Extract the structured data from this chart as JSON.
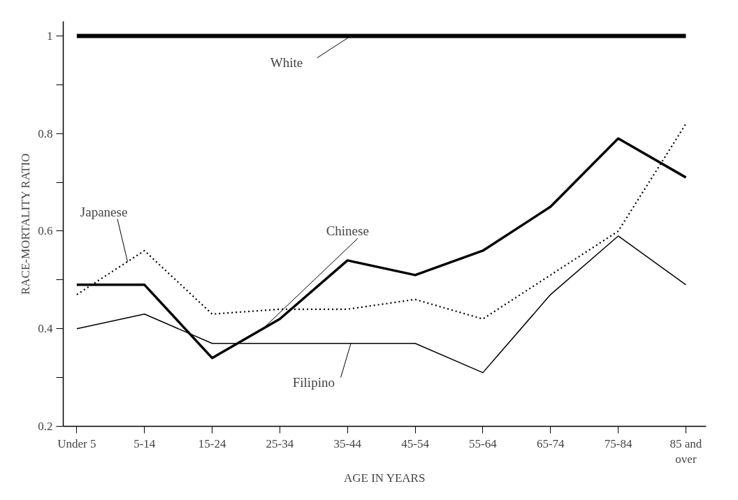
{
  "chart_data": {
    "type": "line",
    "xlabel": "AGE IN YEARS",
    "ylabel": "RACE-MORTALITY RATIO",
    "categories": [
      "Under 5",
      "5-14",
      "15-24",
      "25-34",
      "35-44",
      "45-54",
      "55-64",
      "65-74",
      "75-84",
      "85 and\nover"
    ],
    "series": [
      {
        "name": "White",
        "color": "#000000",
        "line_style": "solid",
        "values": [
          1,
          1,
          1,
          1,
          1,
          1,
          1,
          1,
          1,
          1
        ]
      },
      {
        "name": "Japanese",
        "color": "#000000",
        "line_style": "dotted",
        "values": [
          0.47,
          0.56,
          0.43,
          0.44,
          0.44,
          0.46,
          0.42,
          0.51,
          0.6,
          0.82
        ]
      },
      {
        "name": "Chinese",
        "color": "#000000",
        "line_style": "solid",
        "values": [
          0.49,
          0.49,
          0.34,
          0.42,
          0.54,
          0.51,
          0.56,
          0.65,
          0.79,
          0.71
        ]
      },
      {
        "name": "Filipino",
        "color": "#000000",
        "line_style": "solid",
        "values": [
          0.4,
          0.43,
          0.37,
          0.37,
          0.37,
          0.37,
          0.31,
          0.47,
          0.59,
          0.49
        ]
      }
    ],
    "ylim": [
      0.2,
      1.03
    ],
    "yticks": [
      0.2,
      {
        "value": 0.3,
        "label": null
      },
      0.4,
      {
        "value": 0.5,
        "label": null
      },
      0.6,
      {
        "value": 0.7,
        "label": null
      },
      0.8,
      {
        "value": 0.9,
        "label": null
      },
      {
        "value": 1.0,
        "label": "1"
      }
    ],
    "grid": false,
    "legend": false,
    "marker": "none"
  }
}
